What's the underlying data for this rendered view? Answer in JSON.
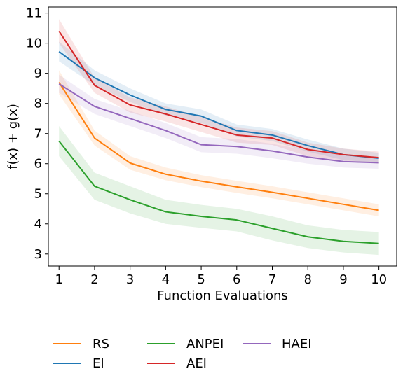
{
  "chart_data": {
    "type": "line",
    "xlabel": "Function Evaluations",
    "ylabel": "f(x) + g(x)",
    "xlim": [
      0.7,
      10.5
    ],
    "ylim": [
      2.6,
      11.2
    ],
    "x": [
      1,
      2,
      3,
      4,
      5,
      6,
      7,
      8,
      9,
      10
    ],
    "x_ticks": [
      1,
      2,
      3,
      4,
      5,
      6,
      7,
      8,
      9,
      10
    ],
    "y_ticks": [
      3,
      4,
      5,
      6,
      7,
      8,
      9,
      10,
      11
    ],
    "grid": false,
    "legend_position": "bottom, outside plot, 3 columns",
    "series": [
      {
        "name": "RS",
        "color": "#ff7f0e",
        "values": [
          8.7,
          6.85,
          6.02,
          5.65,
          5.42,
          5.23,
          5.05,
          4.85,
          4.65,
          4.45
        ],
        "lower": [
          8.3,
          6.6,
          5.8,
          5.45,
          5.22,
          5.03,
          4.85,
          4.65,
          4.45,
          4.25
        ],
        "upper": [
          9.1,
          7.1,
          6.25,
          5.87,
          5.62,
          5.43,
          5.25,
          5.05,
          4.85,
          4.65
        ]
      },
      {
        "name": "EI",
        "color": "#1f77b4",
        "values": [
          9.72,
          8.85,
          8.28,
          7.8,
          7.58,
          7.1,
          6.95,
          6.6,
          6.3,
          6.18
        ],
        "lower": [
          9.4,
          8.6,
          8.05,
          7.6,
          7.35,
          6.9,
          6.75,
          6.4,
          6.12,
          6.02
        ],
        "upper": [
          10.05,
          9.1,
          8.5,
          8.0,
          7.8,
          7.3,
          7.15,
          6.8,
          6.5,
          6.36
        ]
      },
      {
        "name": "ANPEI",
        "color": "#2ca02c",
        "values": [
          6.75,
          5.25,
          4.8,
          4.4,
          4.25,
          4.13,
          3.85,
          3.57,
          3.42,
          3.35
        ],
        "lower": [
          6.25,
          4.8,
          4.35,
          4.0,
          3.87,
          3.75,
          3.45,
          3.2,
          3.05,
          2.97
        ],
        "upper": [
          7.25,
          5.7,
          5.25,
          4.8,
          4.63,
          4.5,
          4.25,
          3.95,
          3.8,
          3.73
        ]
      },
      {
        "name": "AEI",
        "color": "#d62728",
        "values": [
          10.4,
          8.6,
          7.95,
          7.65,
          7.3,
          6.95,
          6.85,
          6.47,
          6.3,
          6.2
        ],
        "lower": [
          10.0,
          8.35,
          7.7,
          7.4,
          7.05,
          6.7,
          6.62,
          6.25,
          6.1,
          6.0
        ],
        "upper": [
          10.8,
          8.85,
          8.2,
          7.9,
          7.55,
          7.2,
          7.08,
          6.7,
          6.5,
          6.4
        ]
      },
      {
        "name": "HAEI",
        "color": "#9467bd",
        "values": [
          8.65,
          7.9,
          7.5,
          7.1,
          6.63,
          6.57,
          6.42,
          6.22,
          6.07,
          6.03
        ],
        "lower": [
          8.35,
          7.65,
          7.25,
          6.85,
          6.38,
          6.33,
          6.18,
          6.0,
          5.87,
          5.83
        ],
        "upper": [
          8.95,
          8.15,
          7.75,
          7.35,
          6.88,
          6.82,
          6.66,
          6.44,
          6.27,
          6.23
        ]
      }
    ],
    "legend_order": [
      "RS",
      "EI",
      "ANPEI",
      "AEI",
      "HAEI"
    ]
  }
}
